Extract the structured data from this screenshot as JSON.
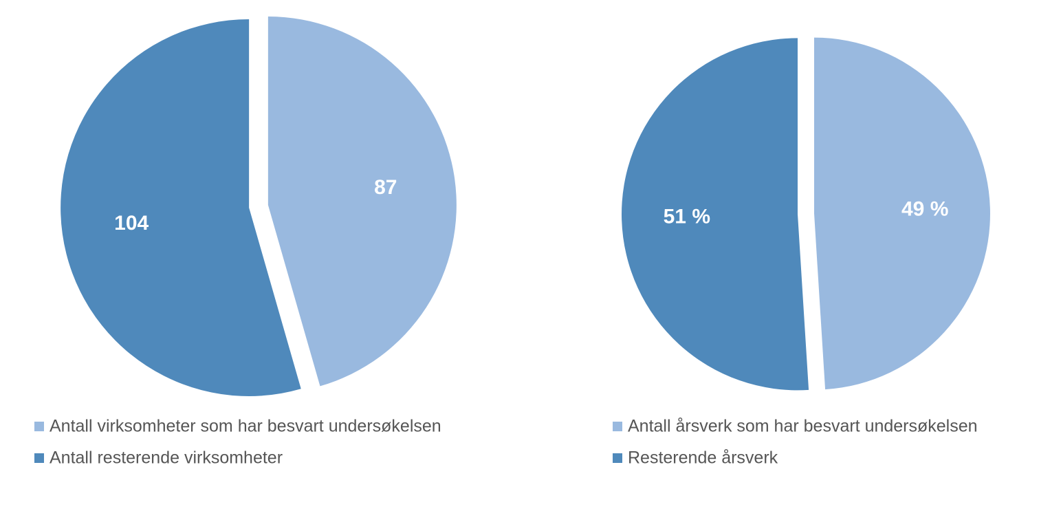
{
  "chart_data": [
    {
      "type": "pie",
      "categories": [
        "Antall virksomheter som har besvart undersøkelsen",
        "Antall resterende virksomheter"
      ],
      "values": [
        87,
        104
      ],
      "colors": [
        "#99b9df",
        "#4f89bb"
      ]
    },
    {
      "type": "pie",
      "categories": [
        "Antall årsverk som har besvart undersøkelsen",
        "Resterende årsverk"
      ],
      "values": [
        49,
        51
      ],
      "value_labels": [
        "49 %",
        "51 %"
      ],
      "colors": [
        "#99b9df",
        "#4f89bb"
      ]
    }
  ]
}
